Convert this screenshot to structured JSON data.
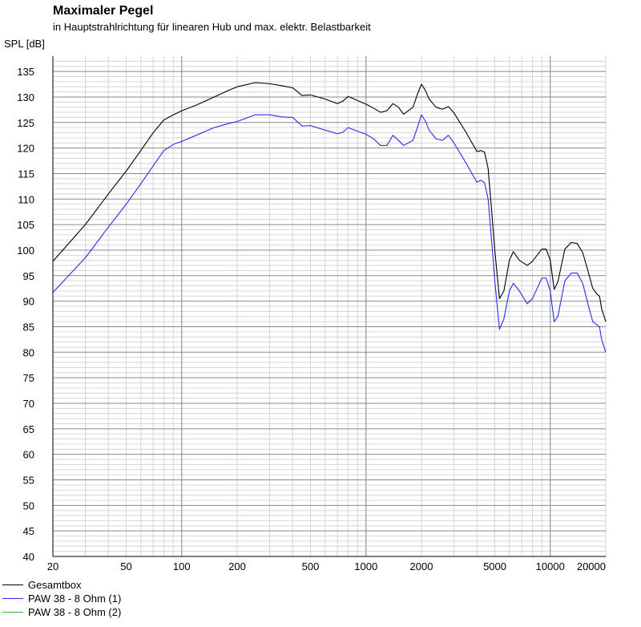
{
  "chart_data": {
    "type": "line",
    "title": "Maximaler Pegel",
    "subtitle": "in Hauptstrahlrichtung für linearen Hub und max. elektr. Belastbarkeit",
    "ylabel": "SPL [dB]",
    "xlabel": "",
    "xscale": "log",
    "xlim": [
      20,
      20000
    ],
    "ylim": [
      40,
      138
    ],
    "y_ticks": [
      40,
      45,
      50,
      55,
      60,
      65,
      70,
      75,
      80,
      85,
      90,
      95,
      100,
      105,
      110,
      115,
      120,
      125,
      130,
      135
    ],
    "x_ticks": [
      20,
      50,
      100,
      200,
      500,
      1000,
      2000,
      5000,
      10000,
      20000
    ],
    "x_tick_labels": [
      "20",
      "50",
      "100",
      "200",
      "500",
      "1000",
      "2000",
      "5000",
      "10000",
      "20000"
    ],
    "grid": true,
    "legend_position": "bottom-left",
    "series": [
      {
        "name": "Gesamtbox",
        "color": "#000000",
        "points": [
          [
            20,
            97.8
          ],
          [
            30,
            105
          ],
          [
            40,
            111
          ],
          [
            50,
            115.5
          ],
          [
            60,
            119.5
          ],
          [
            70,
            123
          ],
          [
            80,
            125.5
          ],
          [
            90,
            126.5
          ],
          [
            100,
            127.3
          ],
          [
            120,
            128.4
          ],
          [
            150,
            130
          ],
          [
            180,
            131.3
          ],
          [
            200,
            132
          ],
          [
            250,
            132.8
          ],
          [
            300,
            132.6
          ],
          [
            350,
            132.2
          ],
          [
            400,
            131.8
          ],
          [
            450,
            130.3
          ],
          [
            500,
            130.4
          ],
          [
            600,
            129.6
          ],
          [
            700,
            128.7
          ],
          [
            750,
            129.2
          ],
          [
            800,
            130.1
          ],
          [
            900,
            129.3
          ],
          [
            1000,
            128.6
          ],
          [
            1100,
            127.8
          ],
          [
            1200,
            127
          ],
          [
            1300,
            127.3
          ],
          [
            1400,
            128.7
          ],
          [
            1500,
            128
          ],
          [
            1600,
            126.6
          ],
          [
            1800,
            128
          ],
          [
            1900,
            130.5
          ],
          [
            2000,
            132.5
          ],
          [
            2100,
            131.3
          ],
          [
            2200,
            129.6
          ],
          [
            2400,
            128
          ],
          [
            2600,
            127.6
          ],
          [
            2800,
            128.1
          ],
          [
            3000,
            126.9
          ],
          [
            3500,
            123
          ],
          [
            4000,
            119.3
          ],
          [
            4200,
            119.5
          ],
          [
            4400,
            119.2
          ],
          [
            4600,
            116
          ],
          [
            4800,
            108
          ],
          [
            5000,
            100
          ],
          [
            5300,
            90.5
          ],
          [
            5600,
            92
          ],
          [
            6000,
            98
          ],
          [
            6300,
            99.7
          ],
          [
            6800,
            98
          ],
          [
            7500,
            97
          ],
          [
            8000,
            97.8
          ],
          [
            9000,
            100.2
          ],
          [
            9500,
            100.2
          ],
          [
            10000,
            98
          ],
          [
            10500,
            92.3
          ],
          [
            11000,
            93.8
          ],
          [
            12000,
            100.2
          ],
          [
            13000,
            101.5
          ],
          [
            14000,
            101.3
          ],
          [
            15000,
            99.5
          ],
          [
            16000,
            96
          ],
          [
            17000,
            92.5
          ],
          [
            18000,
            91.3
          ],
          [
            18500,
            91
          ],
          [
            19000,
            88.5
          ],
          [
            20000,
            86
          ]
        ]
      },
      {
        "name": "PAW 38 - 8 Ohm (1)",
        "color": "#2a2af0",
        "points": [
          [
            20,
            91.7
          ],
          [
            30,
            98.5
          ],
          [
            40,
            104.5
          ],
          [
            50,
            109
          ],
          [
            60,
            113
          ],
          [
            70,
            116.5
          ],
          [
            80,
            119.5
          ],
          [
            90,
            120.7
          ],
          [
            100,
            121.3
          ],
          [
            120,
            122.5
          ],
          [
            150,
            124
          ],
          [
            180,
            124.8
          ],
          [
            200,
            125.2
          ],
          [
            250,
            126.5
          ],
          [
            300,
            126.5
          ],
          [
            350,
            126.1
          ],
          [
            400,
            126
          ],
          [
            450,
            124.3
          ],
          [
            500,
            124.4
          ],
          [
            600,
            123.5
          ],
          [
            700,
            122.8
          ],
          [
            750,
            123.1
          ],
          [
            800,
            124
          ],
          [
            900,
            123.3
          ],
          [
            1000,
            122.7
          ],
          [
            1100,
            121.8
          ],
          [
            1200,
            120.5
          ],
          [
            1300,
            120.5
          ],
          [
            1400,
            122.5
          ],
          [
            1500,
            121.5
          ],
          [
            1600,
            120.5
          ],
          [
            1800,
            121.5
          ],
          [
            1900,
            124
          ],
          [
            2000,
            126.5
          ],
          [
            2100,
            125.3
          ],
          [
            2200,
            123.5
          ],
          [
            2400,
            121.8
          ],
          [
            2600,
            121.5
          ],
          [
            2800,
            122.5
          ],
          [
            3000,
            121
          ],
          [
            3500,
            117
          ],
          [
            4000,
            113.3
          ],
          [
            4200,
            113.7
          ],
          [
            4400,
            113.2
          ],
          [
            4600,
            110
          ],
          [
            4800,
            102
          ],
          [
            5000,
            94
          ],
          [
            5300,
            84.5
          ],
          [
            5600,
            86.5
          ],
          [
            6000,
            92
          ],
          [
            6300,
            93.5
          ],
          [
            6800,
            92
          ],
          [
            7500,
            89.5
          ],
          [
            8000,
            90.5
          ],
          [
            9000,
            94.5
          ],
          [
            9500,
            94.5
          ],
          [
            10000,
            92
          ],
          [
            10500,
            86
          ],
          [
            11000,
            87
          ],
          [
            12000,
            94
          ],
          [
            13000,
            95.5
          ],
          [
            14000,
            95.5
          ],
          [
            15000,
            93.5
          ],
          [
            16000,
            89.5
          ],
          [
            17000,
            86
          ],
          [
            18000,
            85.3
          ],
          [
            18500,
            85
          ],
          [
            19000,
            82.5
          ],
          [
            20000,
            80
          ]
        ]
      },
      {
        "name": "PAW 38 - 8 Ohm (2)",
        "color": "#3cb83c",
        "points": []
      }
    ]
  }
}
